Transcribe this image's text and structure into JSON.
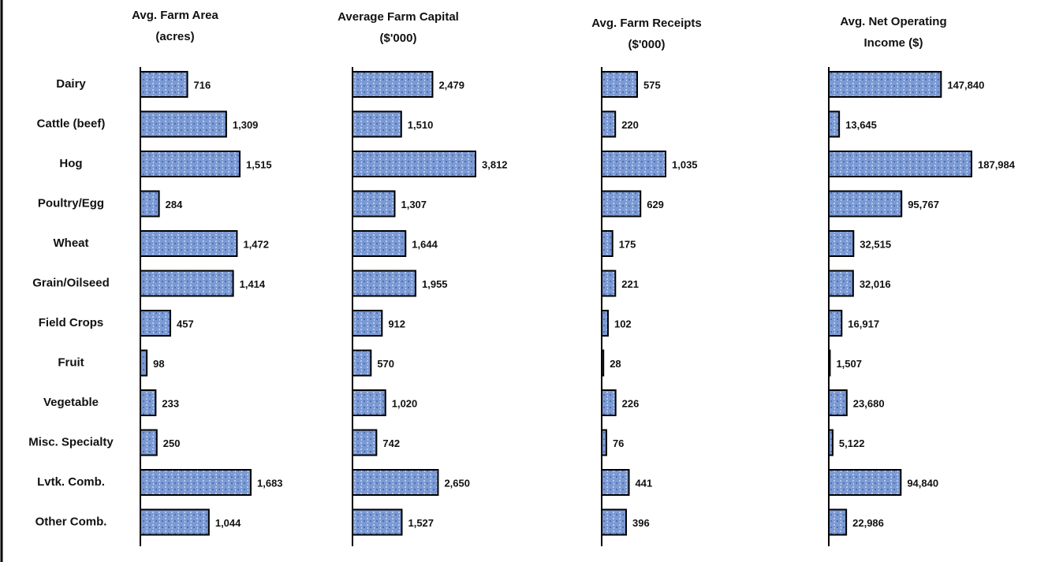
{
  "chart_data": [
    {
      "type": "bar",
      "orientation": "horizontal",
      "title": [
        "Avg. Farm Area",
        "(acres)"
      ],
      "categories": [
        "Dairy",
        "Cattle (beef)",
        "Hog",
        "Poultry/Egg",
        "Wheat",
        "Grain/Oilseed",
        "Field Crops",
        "Fruit",
        "Vegetable",
        "Misc. Specialty",
        "Lvtk. Comb.",
        "Other Comb."
      ],
      "values": [
        716,
        1309,
        1515,
        284,
        1472,
        1414,
        457,
        98,
        233,
        250,
        1683,
        1044
      ],
      "value_labels": [
        "716",
        "1,309",
        "1,515",
        "284",
        "1,472",
        "1,414",
        "457",
        "98",
        "233",
        "250",
        "1,683",
        "1,044"
      ],
      "color": "#7b9ad4"
    },
    {
      "type": "bar",
      "orientation": "horizontal",
      "title": [
        "Average Farm Capital",
        "($'000)"
      ],
      "values": [
        2479,
        1510,
        3812,
        1307,
        1644,
        1955,
        912,
        570,
        1020,
        742,
        2650,
        1527
      ],
      "value_labels": [
        "2,479",
        "1,510",
        "3,812",
        "1,307",
        "1,644",
        "1,955",
        "912",
        "570",
        "1,020",
        "742",
        "2,650",
        "1,527"
      ],
      "color": "#7b9ad4"
    },
    {
      "type": "bar",
      "orientation": "horizontal",
      "title": [
        "Avg. Farm Receipts",
        "($'000)"
      ],
      "values": [
        575,
        220,
        1035,
        629,
        175,
        221,
        102,
        28,
        226,
        76,
        441,
        396
      ],
      "value_labels": [
        "575",
        "220",
        "1,035",
        "629",
        "175",
        "221",
        "102",
        "28",
        "226",
        "76",
        "441",
        "396"
      ],
      "color": "#7b9ad4"
    },
    {
      "type": "bar",
      "orientation": "horizontal",
      "title": [
        "Avg. Net Operating",
        "Income ($)"
      ],
      "values": [
        147840,
        13645,
        187984,
        95767,
        32515,
        32016,
        16917,
        1507,
        23680,
        5122,
        94840,
        22986
      ],
      "value_labels": [
        "147,840",
        "13,645",
        "187,984",
        "95,767",
        "32,515",
        "32,016",
        "16,917",
        "1,507",
        "23,680",
        "5,122",
        "94,840",
        "22,986"
      ],
      "color": "#7b9ad4"
    }
  ]
}
